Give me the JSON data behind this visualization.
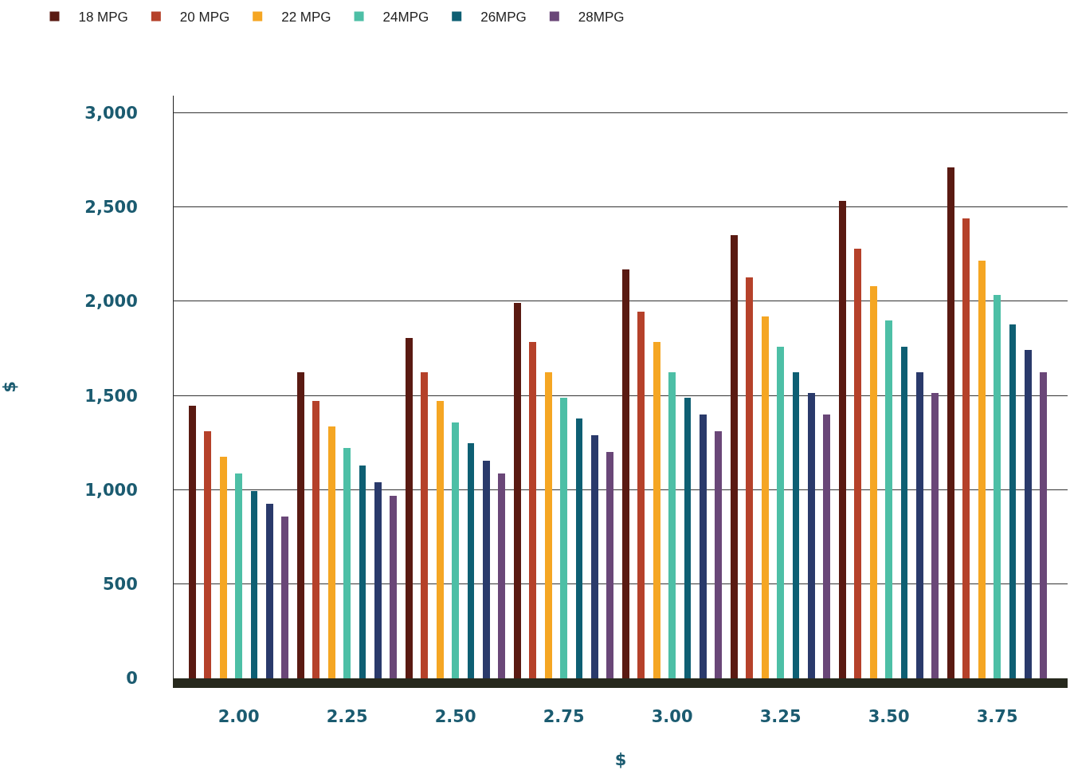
{
  "chart_data": {
    "type": "bar",
    "xlabel": "$",
    "ylabel": "$",
    "categories": [
      "2.00",
      "2.25",
      "2.50",
      "2.75",
      "3.00",
      "3.25",
      "3.50",
      "3.75"
    ],
    "series": [
      {
        "name": "18 MPG",
        "color": "#5a1a12",
        "values": [
          1445,
          1625,
          1805,
          1990,
          2170,
          2350,
          2530,
          2710
        ]
      },
      {
        "name": "20 MPG",
        "color": "#b5412a",
        "values": [
          1310,
          1470,
          1625,
          1785,
          1945,
          2125,
          2280,
          2440
        ]
      },
      {
        "name": "22 MPG",
        "color": "#f5a623",
        "values": [
          1175,
          1335,
          1470,
          1625,
          1785,
          1920,
          2080,
          2215
        ]
      },
      {
        "name": "24MPG",
        "color": "#4dbfa6",
        "values": [
          1085,
          1220,
          1355,
          1490,
          1625,
          1760,
          1900,
          2035
        ]
      },
      {
        "name": "26MPG",
        "color": "#0e5f73",
        "values": [
          995,
          1130,
          1245,
          1380,
          1490,
          1625,
          1760,
          1875
        ]
      },
      {
        "color": "#2a3a6b",
        "values": [
          925,
          1040,
          1155,
          1290,
          1400,
          1515,
          1625,
          1740
        ]
      },
      {
        "name": "28MPG",
        "color": "#6a4778",
        "values": [
          860,
          970,
          1085,
          1200,
          1310,
          1400,
          1515,
          1625
        ]
      }
    ],
    "ylim": [
      0,
      3090
    ],
    "yticks": [
      0,
      {
        "value": 500,
        "label": "500"
      },
      {
        "value": 1000,
        "label": "1,000"
      },
      {
        "value": 1500,
        "label": "1,500"
      },
      {
        "value": 2000,
        "label": "2,000"
      },
      {
        "value": 2500,
        "label": "2,500"
      },
      {
        "value": 3000,
        "label": "3,000"
      }
    ],
    "grid": "y",
    "legend": "top left"
  }
}
